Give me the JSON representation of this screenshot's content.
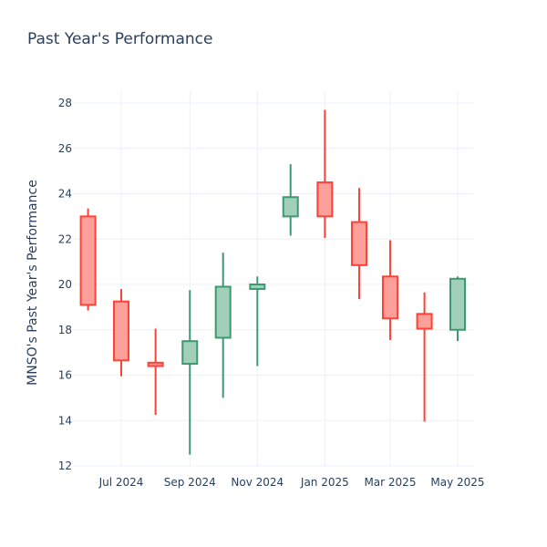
{
  "chart_data": {
    "type": "candlestick",
    "title": "Past Year's Performance",
    "xlabel": "",
    "ylabel": "MNSO's Past Year's Performance",
    "ylim": [
      11.8,
      28.6
    ],
    "y_ticks": [
      12,
      14,
      16,
      18,
      20,
      22,
      24,
      26,
      28
    ],
    "x_ticks": [
      {
        "date": "2024-07-01",
        "label": "Jul 2024"
      },
      {
        "date": "2024-09-01",
        "label": "Sep 2024"
      },
      {
        "date": "2024-11-01",
        "label": "Nov 2024"
      },
      {
        "date": "2025-01-01",
        "label": "Jan 2025"
      },
      {
        "date": "2025-03-01",
        "label": "Mar 2025"
      },
      {
        "date": "2025-05-01",
        "label": "May 2025"
      }
    ],
    "grid": true,
    "colors": {
      "increasing": "#3d9970",
      "decreasing": "#ff4136",
      "increasing_fill": "#a2cfb9",
      "decreasing_fill": "#ff9f9a"
    },
    "candles": [
      {
        "date": "2024-06-01",
        "open": 23.0,
        "high": 23.35,
        "low": 18.85,
        "close": 19.1
      },
      {
        "date": "2024-07-01",
        "open": 19.25,
        "high": 19.8,
        "low": 15.95,
        "close": 16.65
      },
      {
        "date": "2024-08-01",
        "open": 16.55,
        "high": 18.05,
        "low": 14.25,
        "close": 16.4
      },
      {
        "date": "2024-09-01",
        "open": 16.5,
        "high": 19.75,
        "low": 12.5,
        "close": 17.5
      },
      {
        "date": "2024-10-01",
        "open": 17.65,
        "high": 21.4,
        "low": 15.0,
        "close": 19.9
      },
      {
        "date": "2024-11-01",
        "open": 19.8,
        "high": 20.35,
        "low": 16.4,
        "close": 20.0
      },
      {
        "date": "2024-12-01",
        "open": 23.0,
        "high": 25.3,
        "low": 22.15,
        "close": 23.85
      },
      {
        "date": "2025-01-01",
        "open": 24.5,
        "high": 27.7,
        "low": 22.05,
        "close": 23.0
      },
      {
        "date": "2025-02-01",
        "open": 22.75,
        "high": 24.25,
        "low": 19.35,
        "close": 20.85
      },
      {
        "date": "2025-03-01",
        "open": 20.35,
        "high": 21.95,
        "low": 17.55,
        "close": 18.5
      },
      {
        "date": "2025-04-01",
        "open": 18.7,
        "high": 19.65,
        "low": 13.95,
        "close": 18.05
      },
      {
        "date": "2025-05-01",
        "open": 18.0,
        "high": 20.35,
        "low": 17.5,
        "close": 20.25
      }
    ]
  }
}
